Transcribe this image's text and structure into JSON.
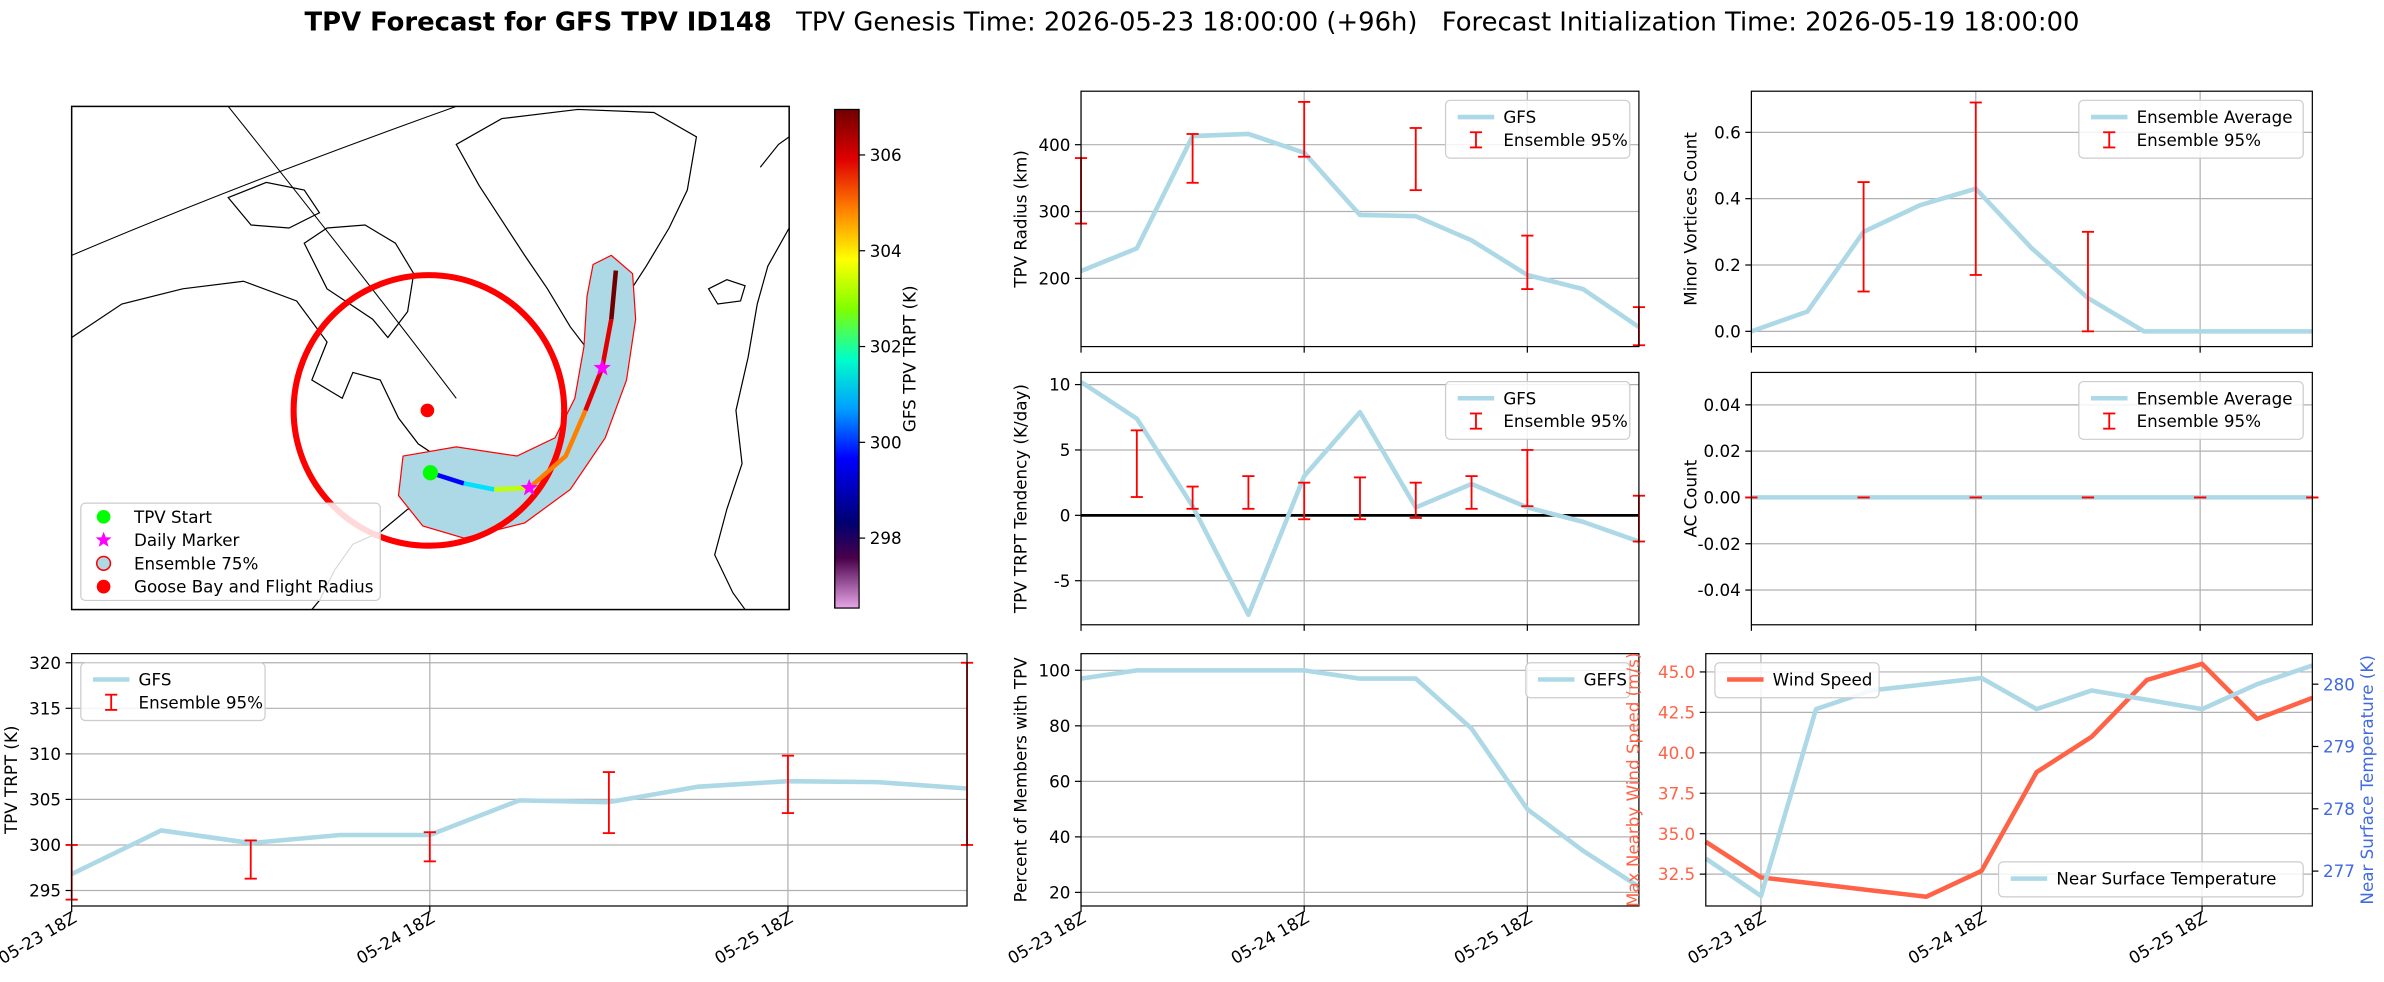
{
  "title": [
    "TPV Forecast for GFS TPV ID148",
    "TPV Genesis Time: 2026-05-23 18:00:00 (+96h)",
    "Forecast Initialization Time: 2026-05-19 18:00:00"
  ],
  "chart_data": [
    {
      "type": "map",
      "legend": [
        {
          "name": "TPV Start",
          "color": "#00ff00",
          "marker": "circle"
        },
        {
          "name": "Daily Marker",
          "color": "#ff00ff",
          "marker": "star"
        },
        {
          "name": "Ensemble 75%",
          "color": "#add8e6",
          "marker": "circle-edge"
        },
        {
          "name": "Goose Bay and Flight Radius",
          "color": "#ff0000",
          "marker": "circle"
        }
      ],
      "colorbar": {
        "label": "GFS TPV TRPT (K)",
        "clim": [
          296.54,
          306.95
        ],
        "ticks": [
          298,
          300,
          302,
          304,
          306
        ]
      }
    },
    {
      "type": "line",
      "ylabel": "TPV Radius (km)",
      "ylim": [
        98,
        480
      ],
      "yticks": [
        200,
        300,
        400
      ],
      "grid": true,
      "sharex": 6,
      "legend": "upper right",
      "series": [
        {
          "name": "GFS",
          "color": "#add8e6",
          "values": [
            211,
            245,
            413,
            416,
            388,
            295,
            293,
            257,
            205,
            184,
            127
          ]
        },
        {
          "name": "Ensemble 95%",
          "type": "errorbar",
          "color": "#ff0000",
          "low": [
            282,
            null,
            343,
            null,
            382,
            null,
            332,
            null,
            184,
            null,
            100
          ],
          "high": [
            380,
            null,
            416,
            null,
            464,
            null,
            425,
            null,
            264,
            null,
            157
          ]
        }
      ]
    },
    {
      "type": "line",
      "ylabel": "Minor Vortices Count",
      "ylim": [
        -0.046,
        0.724
      ],
      "yticks": [
        {
          "value": 0,
          "label": "0.0"
        },
        0.2,
        0.4,
        0.6
      ],
      "grid": true,
      "sharex": 6,
      "legend": "upper right",
      "series": [
        {
          "name": "Ensemble Average",
          "color": "#add8e6",
          "values": [
            0,
            0.06,
            0.3,
            0.38,
            0.43,
            0.25,
            0.1,
            0,
            0,
            0,
            0
          ]
        },
        {
          "name": "Ensemble 95%",
          "type": "errorbar",
          "color": "#ff0000",
          "low": [
            null,
            null,
            0.12,
            null,
            0.17,
            null,
            0,
            null,
            null,
            null,
            null
          ],
          "high": [
            null,
            null,
            0.45,
            null,
            0.69,
            null,
            0.3,
            null,
            null,
            null,
            null
          ]
        }
      ]
    },
    {
      "type": "line",
      "ylabel": "TPV TRPT Tendency (K/day)",
      "ylim": [
        -8.37,
        10.93
      ],
      "yticks": [
        -5,
        0,
        5,
        10
      ],
      "grid": true,
      "sharex": 6,
      "legend": "upper right",
      "hline": 0,
      "series": [
        {
          "name": "GFS",
          "color": "#add8e6",
          "values": [
            10.2,
            7.4,
            0.7,
            -7.6,
            3.0,
            7.9,
            0.6,
            2.4,
            0.6,
            -0.5,
            -2.0
          ]
        },
        {
          "name": "Ensemble 95%",
          "type": "errorbar",
          "color": "#ff0000",
          "low": [
            null,
            1.4,
            0.5,
            0.5,
            -0.3,
            -0.3,
            -0.2,
            0.5,
            0.7,
            null,
            -2.0
          ],
          "high": [
            null,
            6.5,
            2.2,
            3.0,
            2.5,
            2.9,
            2.5,
            3.0,
            5.0,
            null,
            1.5
          ]
        }
      ]
    },
    {
      "type": "line",
      "ylabel": "AC Count",
      "ylim": [
        -0.055,
        0.054
      ],
      "yticks": [
        -0.04,
        -0.02,
        {
          "value": 0,
          "label": "0.00"
        },
        0.02,
        0.04
      ],
      "grid": true,
      "sharex": 6,
      "legend": "upper right",
      "series": [
        {
          "name": "Ensemble Average",
          "color": "#add8e6",
          "values": [
            0,
            0,
            0,
            0,
            0,
            0,
            0,
            0,
            0,
            0,
            0
          ]
        },
        {
          "name": "Ensemble 95%",
          "type": "errorbar",
          "color": "#ff0000",
          "low": [
            0,
            null,
            0,
            null,
            0,
            null,
            0,
            null,
            0,
            null,
            0
          ],
          "high": [
            0,
            null,
            0,
            null,
            0,
            null,
            0,
            null,
            0,
            null,
            0
          ]
        }
      ]
    },
    {
      "type": "line",
      "ylabel": "TPV TRPT (K)",
      "ylim": [
        293.3,
        321
      ],
      "yticks": [
        295,
        300,
        305,
        310,
        315,
        320
      ],
      "grid": true,
      "legend": "upper left",
      "categories": [
        "05-23 18Z",
        null,
        null,
        null,
        "05-24 18Z",
        null,
        null,
        null,
        "05-25 18Z",
        null,
        null
      ],
      "series": [
        {
          "name": "GFS",
          "color": "#add8e6",
          "values": [
            296.8,
            301.6,
            300.2,
            301.1,
            301.1,
            304.9,
            304.7,
            306.4,
            307.0,
            306.9,
            306.2
          ]
        },
        {
          "name": "Ensemble 95%",
          "type": "errorbar",
          "color": "#ff0000",
          "low": [
            294,
            null,
            296.3,
            null,
            298.2,
            null,
            301.3,
            null,
            303.5,
            null,
            300
          ],
          "high": [
            300,
            null,
            300.5,
            null,
            301.4,
            null,
            308,
            null,
            309.8,
            null,
            320
          ]
        }
      ]
    },
    {
      "type": "line",
      "ylabel": "Percent of Members with TPV",
      "ylim": [
        15.1,
        106
      ],
      "yticks": [
        20,
        40,
        60,
        80,
        100
      ],
      "grid": true,
      "legend": "upper right",
      "categories": [
        "05-23 18Z",
        null,
        null,
        null,
        "05-24 18Z",
        null,
        null,
        null,
        "05-25 18Z",
        null,
        null
      ],
      "series": [
        {
          "name": "GEFS",
          "color": "#add8e6",
          "values": [
            97,
            100,
            100,
            100,
            100,
            97,
            97,
            79,
            50,
            35,
            22
          ]
        }
      ]
    },
    {
      "type": "line",
      "ylabel": "Max Nearby Wind Speed (m/s)",
      "ycolor": "#ff6347",
      "y2label": "Near Surface Temperature (K)",
      "y2color": "#4169e1",
      "ylim": [
        30.53,
        46.13
      ],
      "yticks": [
        32.5,
        {
          "value": 35,
          "label": "35.0"
        },
        37.5,
        {
          "value": 40,
          "label": "40.0"
        },
        42.5,
        {
          "value": 45,
          "label": "45.0"
        }
      ],
      "y2lim": [
        276.44,
        280.49
      ],
      "y2ticks": [
        277,
        278,
        279,
        280
      ],
      "grid": true,
      "categories": [
        null,
        "05-23 18Z",
        null,
        null,
        null,
        "05-24 18Z",
        null,
        null,
        null,
        "05-25 18Z",
        null,
        null
      ],
      "series": [
        {
          "name": "Wind Speed",
          "color": "#ff6347",
          "legend": "upper left",
          "values": [
            34.5,
            32.3,
            31.9,
            31.5,
            31.1,
            32.7,
            38.8,
            41.0,
            44.5,
            45.5,
            42.1,
            43.4
          ]
        },
        {
          "name": "Near Surface Temperature",
          "color": "#add8e6",
          "axis": "y2",
          "legend": "lower right",
          "values": [
            277.2,
            276.6,
            279.6,
            279.9,
            280.0,
            280.1,
            279.6,
            279.9,
            279.75,
            279.6,
            280.0,
            280.3
          ]
        }
      ]
    }
  ]
}
